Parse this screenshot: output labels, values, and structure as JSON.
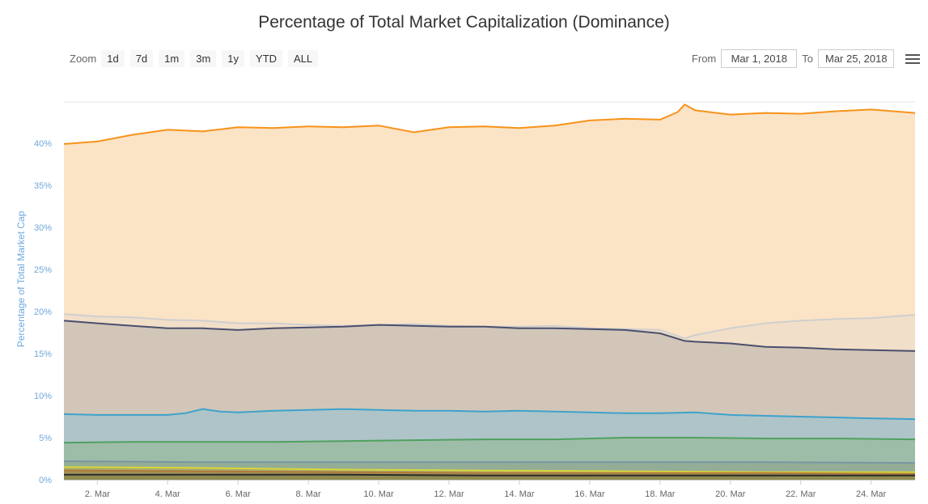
{
  "title": "Percentage of Total Market Capitalization (Dominance)",
  "zoom": {
    "label": "Zoom",
    "buttons": [
      "1d",
      "7d",
      "1m",
      "3m",
      "1y",
      "YTD",
      "ALL"
    ]
  },
  "range": {
    "from_label": "From",
    "from_value": "Mar 1, 2018",
    "to_label": "To",
    "to_value": "Mar 25, 2018"
  },
  "menu_icon": "hamburger-menu-icon",
  "chart_data": {
    "type": "area",
    "title": "Percentage of Total Market Capitalization (Dominance)",
    "ylabel": "Percentage of Total Market Cap",
    "ylim": [
      0,
      44
    ],
    "xlim": [
      1.05,
      25.25
    ],
    "ytick_values": [
      0,
      5,
      10,
      15,
      20,
      25,
      30,
      35,
      40
    ],
    "yticks": [
      "0%",
      "5%",
      "10%",
      "15%",
      "20%",
      "25%",
      "30%",
      "35%",
      "40%"
    ],
    "xtick_values": [
      2,
      4,
      6,
      8,
      10,
      12,
      14,
      16,
      18,
      20,
      22,
      24
    ],
    "xticks": [
      "2. Mar",
      "4. Mar",
      "6. Mar",
      "8. Mar",
      "10. Mar",
      "12. Mar",
      "14. Mar",
      "16. Mar",
      "18. Mar",
      "20. Mar",
      "22. Mar",
      "24. Mar"
    ],
    "grid": true,
    "legend": "none",
    "series": [
      {
        "color": "#f7931a",
        "fill": "#fbe3c6",
        "x": [
          1.05,
          2.0,
          3.0,
          4.0,
          5.0,
          6.0,
          7.0,
          8.0,
          9.0,
          10.0,
          11.0,
          12.0,
          13.0,
          14.0,
          15.0,
          16.0,
          17.0,
          18.0,
          18.5,
          18.7,
          19.0,
          20.0,
          21.0,
          22.0,
          23.0,
          24.0,
          25.25
        ],
        "values": [
          39.9,
          40.2,
          41.0,
          41.6,
          41.4,
          41.9,
          41.8,
          42.0,
          41.9,
          42.1,
          41.3,
          41.9,
          42.0,
          41.8,
          42.1,
          42.7,
          42.9,
          42.8,
          43.7,
          44.6,
          43.9,
          43.4,
          43.6,
          43.5,
          43.8,
          44.0,
          43.6
        ]
      },
      {
        "color": "#cfcfcf",
        "fill": "#f2dfc9",
        "x": [
          1.05,
          2.0,
          3.0,
          4.0,
          5.0,
          6.0,
          7.0,
          8.0,
          9.0,
          10.0,
          11.0,
          12.0,
          13.0,
          14.0,
          15.0,
          16.0,
          17.0,
          18.0,
          18.7,
          19.0,
          20.0,
          21.0,
          22.0,
          23.0,
          24.0,
          25.25
        ],
        "values": [
          19.7,
          19.4,
          19.3,
          19.0,
          18.9,
          18.6,
          18.6,
          18.4,
          18.3,
          18.4,
          18.5,
          18.3,
          18.2,
          18.2,
          18.3,
          18.0,
          17.9,
          17.8,
          16.8,
          17.2,
          18.0,
          18.6,
          18.9,
          19.1,
          19.2,
          19.6
        ]
      },
      {
        "color": "#4a4f6e",
        "fill": "#d2c6b8",
        "x": [
          1.05,
          2.0,
          3.0,
          4.0,
          5.0,
          6.0,
          7.0,
          8.0,
          9.0,
          10.0,
          11.0,
          12.0,
          13.0,
          14.0,
          15.0,
          16.0,
          17.0,
          18.0,
          18.7,
          19.0,
          20.0,
          21.0,
          22.0,
          23.0,
          24.0,
          25.25
        ],
        "values": [
          18.9,
          18.6,
          18.3,
          18.0,
          18.0,
          17.8,
          18.0,
          18.1,
          18.2,
          18.4,
          18.3,
          18.2,
          18.2,
          18.0,
          18.0,
          17.9,
          17.8,
          17.4,
          16.5,
          16.4,
          16.2,
          15.8,
          15.7,
          15.5,
          15.4,
          15.3
        ]
      },
      {
        "color": "#3ea2cc",
        "fill": "#aec4c8",
        "x": [
          1.05,
          2.0,
          3.0,
          4.0,
          4.5,
          5.0,
          5.5,
          6.0,
          7.0,
          8.0,
          9.0,
          10.0,
          11.0,
          12.0,
          13.0,
          14.0,
          15.0,
          16.0,
          17.0,
          18.0,
          19.0,
          20.0,
          21.0,
          22.0,
          23.0,
          24.0,
          25.25
        ],
        "values": [
          7.8,
          7.7,
          7.7,
          7.7,
          7.9,
          8.4,
          8.1,
          8.0,
          8.2,
          8.3,
          8.4,
          8.3,
          8.2,
          8.2,
          8.1,
          8.2,
          8.1,
          8.0,
          7.9,
          7.9,
          8.0,
          7.7,
          7.6,
          7.5,
          7.4,
          7.3,
          7.2
        ]
      },
      {
        "color": "#50a060",
        "fill": "#9ebda8",
        "x": [
          1.05,
          3.0,
          5.0,
          7.0,
          9.0,
          11.0,
          13.0,
          15.0,
          17.0,
          19.0,
          21.0,
          23.0,
          25.25
        ],
        "values": [
          4.4,
          4.5,
          4.5,
          4.5,
          4.6,
          4.7,
          4.8,
          4.8,
          5.0,
          5.0,
          4.9,
          4.9,
          4.8
        ]
      },
      {
        "color": "#7a95a3",
        "fill": "#93ad96",
        "x": [
          1.05,
          5.0,
          9.0,
          13.0,
          17.0,
          21.0,
          25.25
        ],
        "values": [
          2.2,
          2.1,
          2.1,
          2.1,
          2.1,
          2.1,
          2.0
        ]
      },
      {
        "color": "#d8d63a",
        "fill": "#a8aa6c",
        "x": [
          1.05,
          5.0,
          9.0,
          13.0,
          17.0,
          21.0,
          25.25
        ],
        "values": [
          1.5,
          1.4,
          1.2,
          1.1,
          1.0,
          0.9,
          0.9
        ]
      },
      {
        "color": "#b07a3c",
        "fill": "#a29256",
        "x": [
          1.05,
          5.0,
          9.0,
          13.0,
          17.0,
          21.0,
          25.25
        ],
        "values": [
          1.1,
          1.0,
          0.9,
          0.8,
          0.8,
          0.8,
          0.7
        ]
      },
      {
        "color": "#2a2a2a",
        "fill": "#8f8a50",
        "x": [
          1.05,
          5.0,
          9.0,
          13.0,
          17.0,
          21.0,
          25.25
        ],
        "values": [
          0.6,
          0.6,
          0.6,
          0.5,
          0.5,
          0.5,
          0.5
        ]
      }
    ]
  }
}
